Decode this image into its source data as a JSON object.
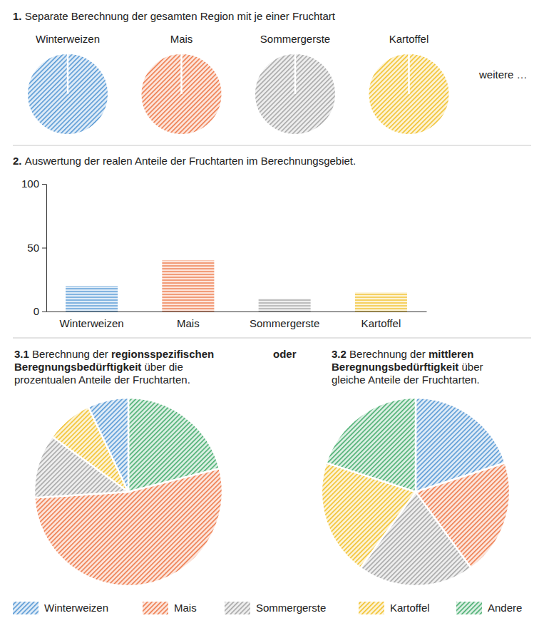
{
  "chart_data": [
    {
      "type": "pie",
      "title": "1. Separate Berechnung der gesamten Region mit je einer Fruchtart",
      "annotations": [
        "weitere …"
      ],
      "series": [
        {
          "name": "Winterweizen",
          "color": "#5b9bd5",
          "values": [
            100
          ]
        },
        {
          "name": "Mais",
          "color": "#ee7d4f",
          "values": [
            100
          ]
        },
        {
          "name": "Sommergerste",
          "color": "#a8a8a8",
          "values": [
            100
          ]
        },
        {
          "name": "Kartoffel",
          "color": "#f2c230",
          "values": [
            100
          ]
        }
      ]
    },
    {
      "type": "bar",
      "title": "2. Auswertung der realen Anteile der Fruchtarten im Berechnungsgebiet.",
      "categories": [
        "Winterweizen",
        "Mais",
        "Sommergerste",
        "Kartoffel"
      ],
      "values": [
        20,
        40,
        10,
        15
      ],
      "colors": [
        "#5b9bd5",
        "#ee7d4f",
        "#a8a8a8",
        "#f2c230"
      ],
      "ylim": [
        0,
        100
      ],
      "yticks": [
        0,
        50,
        100
      ]
    },
    {
      "type": "pie",
      "title": [
        "3.1 Berechnung der regionsspezifischen",
        "Beregnungsbedürftigkeit über die",
        "prozentualen Anteile der Fruchtarten."
      ],
      "annotations": [
        "oder"
      ],
      "categories": [
        "Andere",
        "Mais",
        "Sommergerste",
        "Kartoffel",
        "Winterweizen"
      ],
      "values": [
        21,
        53,
        11,
        8,
        7
      ]
    },
    {
      "type": "pie",
      "title": [
        "3.2 Berechnung der mittleren",
        "Beregnungsbedürftigkeit über",
        "gleiche Anteile der Fruchtarten."
      ],
      "categories": [
        "Winterweizen",
        "Mais",
        "Sommergerste",
        "Kartoffel",
        "Andere"
      ],
      "values": [
        20,
        20,
        20,
        20,
        20
      ],
      "colors": [
        "#5b9bd5",
        "#ee7d4f",
        "#a8a8a8",
        "#f2c230",
        "#4caf72"
      ],
      "legend": "bottom"
    }
  ]
}
